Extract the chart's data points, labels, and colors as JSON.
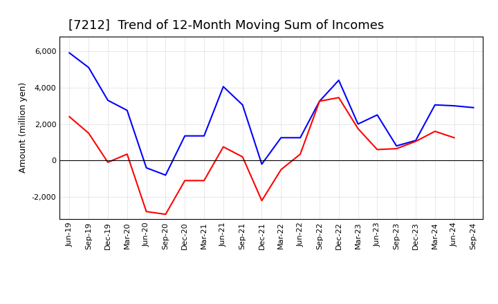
{
  "title": "[7212]  Trend of 12-Month Moving Sum of Incomes",
  "ylabel": "Amount (million yen)",
  "x_labels": [
    "Jun-19",
    "Sep-19",
    "Dec-19",
    "Mar-20",
    "Jun-20",
    "Sep-20",
    "Dec-20",
    "Mar-21",
    "Jun-21",
    "Sep-21",
    "Dec-21",
    "Mar-22",
    "Jun-22",
    "Sep-22",
    "Dec-22",
    "Mar-23",
    "Jun-23",
    "Sep-23",
    "Dec-23",
    "Mar-24",
    "Jun-24",
    "Sep-24"
  ],
  "ordinary_income": [
    5900,
    5100,
    3300,
    2750,
    -400,
    -800,
    1350,
    1350,
    4050,
    3050,
    -200,
    1250,
    1250,
    3250,
    4400,
    2000,
    2500,
    800,
    1100,
    3050,
    3000,
    2900
  ],
  "net_income": [
    2400,
    1500,
    -100,
    350,
    -2800,
    -2950,
    -1100,
    -1100,
    750,
    200,
    -2200,
    -500,
    350,
    3250,
    3450,
    1750,
    600,
    650,
    1050,
    1600,
    1250,
    null
  ],
  "ordinary_color": "#0000ff",
  "net_color": "#ff0000",
  "background_color": "#ffffff",
  "grid_color": "#aaaaaa",
  "ylim": [
    -3200,
    6800
  ],
  "yticks": [
    -2000,
    0,
    2000,
    4000,
    6000
  ],
  "line_width": 1.5,
  "title_fontsize": 13,
  "legend_fontsize": 10,
  "tick_fontsize": 8,
  "ylabel_fontsize": 9
}
